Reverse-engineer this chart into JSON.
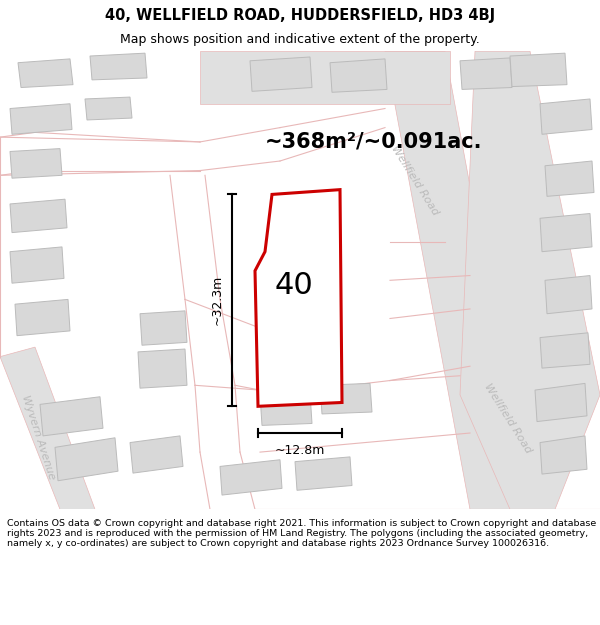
{
  "title_line1": "40, WELLFIELD ROAD, HUDDERSFIELD, HD3 4BJ",
  "title_line2": "Map shows position and indicative extent of the property.",
  "area_text": "~368m²/~0.091ac.",
  "property_number": "40",
  "dim_vertical": "~32.3m",
  "dim_horizontal": "~12.8m",
  "footer_text": "Contains OS data © Crown copyright and database right 2021. This information is subject to Crown copyright and database rights 2023 and is reproduced with the permission of HM Land Registry. The polygons (including the associated geometry, namely x, y co-ordinates) are subject to Crown copyright and database rights 2023 Ordnance Survey 100026316.",
  "bg_color": "#ffffff",
  "map_bg": "#f7f3f3",
  "road_outline_color": "#e8b8b8",
  "road_fill_color": "#e0e0e0",
  "building_fill": "#d8d8d8",
  "building_edge": "#bbbbbb",
  "property_outline_color": "#cc0000",
  "property_fill": "#ffffff",
  "dim_color": "#000000",
  "title_color": "#000000",
  "footer_color": "#000000",
  "label_color": "#bbbbbb",
  "wellfield_road_label": "Wellfield Road",
  "wyvern_avenue_label": "Wyvern Avenue",
  "title_fontsize": 10.5,
  "subtitle_fontsize": 9,
  "area_fontsize": 15,
  "property_num_fontsize": 22,
  "dim_fontsize": 9,
  "label_fontsize": 8,
  "footer_fontsize": 6.8
}
